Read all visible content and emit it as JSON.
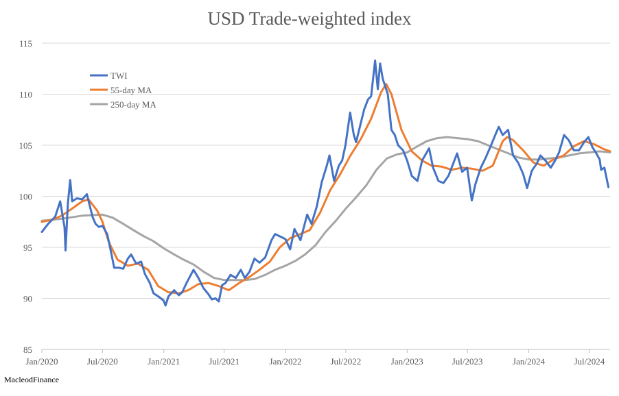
{
  "title": "USD Trade-weighted index",
  "credit": "MacleodFinance",
  "chart_data": {
    "type": "line",
    "title": "USD Trade-weighted index",
    "xlabel": "",
    "ylabel": "",
    "ylim": [
      85,
      115
    ],
    "yticks": [
      85,
      90,
      95,
      100,
      105,
      110,
      115
    ],
    "xlim": [
      "2020-01-01",
      "2024-09-01"
    ],
    "xticks": [
      {
        "date": "2020-01-01",
        "label": "Jan/2020"
      },
      {
        "date": "2020-07-01",
        "label": "Jul/2020"
      },
      {
        "date": "2021-01-01",
        "label": "Jan/2021"
      },
      {
        "date": "2021-07-01",
        "label": "Jul/2021"
      },
      {
        "date": "2022-01-01",
        "label": "Jan/2022"
      },
      {
        "date": "2022-07-01",
        "label": "Jul/2022"
      },
      {
        "date": "2023-01-01",
        "label": "Jan/2023"
      },
      {
        "date": "2023-07-01",
        "label": "Jul/2023"
      },
      {
        "date": "2024-01-01",
        "label": "Jan/2024"
      },
      {
        "date": "2024-07-01",
        "label": "Jul/2024"
      }
    ],
    "grid": "horizontal",
    "legend_position": "top-left",
    "series": [
      {
        "name": "TWI",
        "color": "#4472C4",
        "points": [
          [
            "2020-01-01",
            96.5
          ],
          [
            "2020-01-20",
            97.3
          ],
          [
            "2020-02-10",
            98.0
          ],
          [
            "2020-02-25",
            99.5
          ],
          [
            "2020-03-09",
            97.0
          ],
          [
            "2020-03-12",
            94.7
          ],
          [
            "2020-03-19",
            99.3
          ],
          [
            "2020-03-26",
            101.6
          ],
          [
            "2020-04-01",
            99.5
          ],
          [
            "2020-04-15",
            99.8
          ],
          [
            "2020-05-01",
            99.7
          ],
          [
            "2020-05-15",
            100.2
          ],
          [
            "2020-06-01",
            98.0
          ],
          [
            "2020-06-10",
            97.3
          ],
          [
            "2020-06-20",
            97.0
          ],
          [
            "2020-07-01",
            97.1
          ],
          [
            "2020-07-15",
            96.3
          ],
          [
            "2020-07-25",
            94.8
          ],
          [
            "2020-08-05",
            93.0
          ],
          [
            "2020-08-20",
            93.0
          ],
          [
            "2020-09-01",
            92.9
          ],
          [
            "2020-09-15",
            93.9
          ],
          [
            "2020-09-25",
            94.3
          ],
          [
            "2020-10-10",
            93.4
          ],
          [
            "2020-10-25",
            93.6
          ],
          [
            "2020-11-05",
            92.4
          ],
          [
            "2020-11-20",
            91.5
          ],
          [
            "2020-12-01",
            90.5
          ],
          [
            "2020-12-15",
            90.2
          ],
          [
            "2020-12-31",
            89.8
          ],
          [
            "2021-01-06",
            89.3
          ],
          [
            "2021-01-15",
            90.2
          ],
          [
            "2021-02-01",
            90.8
          ],
          [
            "2021-02-15",
            90.3
          ],
          [
            "2021-02-25",
            90.6
          ],
          [
            "2021-03-10",
            91.5
          ],
          [
            "2021-03-31",
            92.8
          ],
          [
            "2021-04-15",
            92.0
          ],
          [
            "2021-04-30",
            91.0
          ],
          [
            "2021-05-15",
            90.4
          ],
          [
            "2021-05-25",
            89.9
          ],
          [
            "2021-06-05",
            90.0
          ],
          [
            "2021-06-15",
            89.7
          ],
          [
            "2021-06-25",
            91.3
          ],
          [
            "2021-07-05",
            91.5
          ],
          [
            "2021-07-20",
            92.3
          ],
          [
            "2021-08-05",
            92.0
          ],
          [
            "2021-08-20",
            92.8
          ],
          [
            "2021-09-01",
            92.0
          ],
          [
            "2021-09-15",
            92.6
          ],
          [
            "2021-09-30",
            93.9
          ],
          [
            "2021-10-15",
            93.5
          ],
          [
            "2021-11-01",
            94.0
          ],
          [
            "2021-11-20",
            95.7
          ],
          [
            "2021-12-01",
            96.3
          ],
          [
            "2021-12-20",
            96.0
          ],
          [
            "2022-01-01",
            95.8
          ],
          [
            "2022-01-15",
            94.8
          ],
          [
            "2022-01-28",
            96.8
          ],
          [
            "2022-02-15",
            95.7
          ],
          [
            "2022-03-07",
            98.2
          ],
          [
            "2022-03-20",
            97.3
          ],
          [
            "2022-04-05",
            99.0
          ],
          [
            "2022-04-20",
            101.4
          ],
          [
            "2022-05-05",
            103.0
          ],
          [
            "2022-05-13",
            104.0
          ],
          [
            "2022-05-27",
            101.5
          ],
          [
            "2022-06-10",
            103.0
          ],
          [
            "2022-06-20",
            103.5
          ],
          [
            "2022-06-30",
            105.0
          ],
          [
            "2022-07-14",
            108.2
          ],
          [
            "2022-07-25",
            106.0
          ],
          [
            "2022-08-01",
            105.3
          ],
          [
            "2022-08-10",
            106.5
          ],
          [
            "2022-08-25",
            108.5
          ],
          [
            "2022-09-06",
            109.5
          ],
          [
            "2022-09-15",
            109.8
          ],
          [
            "2022-09-27",
            113.3
          ],
          [
            "2022-10-05",
            110.5
          ],
          [
            "2022-10-12",
            113.0
          ],
          [
            "2022-10-20",
            111.5
          ],
          [
            "2022-11-04",
            110.0
          ],
          [
            "2022-11-15",
            106.5
          ],
          [
            "2022-11-25",
            106.0
          ],
          [
            "2022-12-05",
            105.0
          ],
          [
            "2022-12-20",
            104.5
          ],
          [
            "2023-01-01",
            103.5
          ],
          [
            "2023-01-15",
            102.0
          ],
          [
            "2023-02-01",
            101.5
          ],
          [
            "2023-02-15",
            103.5
          ],
          [
            "2023-03-08",
            104.7
          ],
          [
            "2023-03-20",
            102.8
          ],
          [
            "2023-04-05",
            101.5
          ],
          [
            "2023-04-20",
            101.3
          ],
          [
            "2023-05-05",
            102.0
          ],
          [
            "2023-05-31",
            104.2
          ],
          [
            "2023-06-15",
            102.4
          ],
          [
            "2023-06-30",
            102.8
          ],
          [
            "2023-07-14",
            99.6
          ],
          [
            "2023-07-25",
            101.2
          ],
          [
            "2023-08-10",
            102.8
          ],
          [
            "2023-08-25",
            103.8
          ],
          [
            "2023-09-10",
            105.0
          ],
          [
            "2023-09-25",
            106.2
          ],
          [
            "2023-10-03",
            106.8
          ],
          [
            "2023-10-15",
            106.0
          ],
          [
            "2023-10-31",
            106.5
          ],
          [
            "2023-11-15",
            104.0
          ],
          [
            "2023-11-30",
            103.3
          ],
          [
            "2023-12-15",
            102.2
          ],
          [
            "2023-12-27",
            100.8
          ],
          [
            "2024-01-10",
            102.5
          ],
          [
            "2024-01-25",
            103.2
          ],
          [
            "2024-02-05",
            104.0
          ],
          [
            "2024-02-20",
            103.5
          ],
          [
            "2024-03-07",
            102.8
          ],
          [
            "2024-03-20",
            103.5
          ],
          [
            "2024-04-01",
            104.3
          ],
          [
            "2024-04-16",
            106.0
          ],
          [
            "2024-04-30",
            105.5
          ],
          [
            "2024-05-15",
            104.5
          ],
          [
            "2024-05-31",
            104.5
          ],
          [
            "2024-06-15",
            105.3
          ],
          [
            "2024-06-28",
            105.8
          ],
          [
            "2024-07-10",
            104.8
          ],
          [
            "2024-07-20",
            104.3
          ],
          [
            "2024-08-01",
            103.6
          ],
          [
            "2024-08-05",
            102.6
          ],
          [
            "2024-08-15",
            102.8
          ],
          [
            "2024-08-27",
            100.9
          ]
        ]
      },
      {
        "name": "55-day MA",
        "color": "#ED7D31",
        "points": [
          [
            "2020-01-01",
            97.5
          ],
          [
            "2020-02-01",
            97.7
          ],
          [
            "2020-03-01",
            98.1
          ],
          [
            "2020-04-01",
            98.8
          ],
          [
            "2020-05-01",
            99.5
          ],
          [
            "2020-05-20",
            99.7
          ],
          [
            "2020-06-15",
            98.6
          ],
          [
            "2020-07-01",
            97.5
          ],
          [
            "2020-07-20",
            95.5
          ],
          [
            "2020-08-15",
            93.8
          ],
          [
            "2020-09-15",
            93.2
          ],
          [
            "2020-10-15",
            93.4
          ],
          [
            "2020-11-15",
            92.8
          ],
          [
            "2020-12-15",
            91.2
          ],
          [
            "2021-01-15",
            90.6
          ],
          [
            "2021-02-15",
            90.5
          ],
          [
            "2021-03-15",
            90.8
          ],
          [
            "2021-04-15",
            91.4
          ],
          [
            "2021-05-15",
            91.5
          ],
          [
            "2021-06-15",
            91.2
          ],
          [
            "2021-07-15",
            90.8
          ],
          [
            "2021-08-15",
            91.5
          ],
          [
            "2021-09-15",
            92.1
          ],
          [
            "2021-10-15",
            92.8
          ],
          [
            "2021-11-15",
            93.6
          ],
          [
            "2021-12-15",
            95.0
          ],
          [
            "2022-01-15",
            95.9
          ],
          [
            "2022-02-15",
            96.3
          ],
          [
            "2022-03-15",
            96.7
          ],
          [
            "2022-04-15",
            98.4
          ],
          [
            "2022-05-15",
            100.6
          ],
          [
            "2022-06-15",
            102.2
          ],
          [
            "2022-07-15",
            104.0
          ],
          [
            "2022-08-15",
            105.6
          ],
          [
            "2022-09-15",
            107.6
          ],
          [
            "2022-10-15",
            110.2
          ],
          [
            "2022-10-30",
            111.0
          ],
          [
            "2022-11-15",
            110.0
          ],
          [
            "2022-12-15",
            106.5
          ],
          [
            "2023-01-15",
            104.4
          ],
          [
            "2023-02-15",
            103.5
          ],
          [
            "2023-03-15",
            103.0
          ],
          [
            "2023-04-15",
            102.9
          ],
          [
            "2023-05-15",
            102.6
          ],
          [
            "2023-06-15",
            102.8
          ],
          [
            "2023-07-15",
            102.7
          ],
          [
            "2023-08-15",
            102.5
          ],
          [
            "2023-09-15",
            103.0
          ],
          [
            "2023-10-15",
            105.4
          ],
          [
            "2023-10-28",
            105.8
          ],
          [
            "2023-11-15",
            105.5
          ],
          [
            "2023-12-15",
            104.5
          ],
          [
            "2024-01-15",
            103.3
          ],
          [
            "2024-02-15",
            103.0
          ],
          [
            "2024-03-15",
            103.6
          ],
          [
            "2024-04-15",
            104.0
          ],
          [
            "2024-05-15",
            104.9
          ],
          [
            "2024-06-15",
            105.4
          ],
          [
            "2024-07-15",
            105.1
          ],
          [
            "2024-08-15",
            104.6
          ],
          [
            "2024-09-01",
            104.4
          ]
        ]
      },
      {
        "name": "250-day MA",
        "color": "#A5A5A5",
        "points": [
          [
            "2020-01-01",
            97.6
          ],
          [
            "2020-03-01",
            97.8
          ],
          [
            "2020-05-01",
            98.1
          ],
          [
            "2020-07-01",
            98.2
          ],
          [
            "2020-08-01",
            97.9
          ],
          [
            "2020-09-01",
            97.3
          ],
          [
            "2020-10-01",
            96.7
          ],
          [
            "2020-11-01",
            96.1
          ],
          [
            "2020-12-01",
            95.6
          ],
          [
            "2021-01-01",
            94.9
          ],
          [
            "2021-02-01",
            94.3
          ],
          [
            "2021-03-01",
            93.8
          ],
          [
            "2021-04-01",
            93.3
          ],
          [
            "2021-05-01",
            92.6
          ],
          [
            "2021-06-01",
            92.0
          ],
          [
            "2021-07-01",
            91.8
          ],
          [
            "2021-08-01",
            91.8
          ],
          [
            "2021-09-01",
            91.8
          ],
          [
            "2021-10-01",
            91.9
          ],
          [
            "2021-11-01",
            92.3
          ],
          [
            "2021-12-01",
            92.8
          ],
          [
            "2022-01-01",
            93.2
          ],
          [
            "2022-02-01",
            93.7
          ],
          [
            "2022-03-01",
            94.3
          ],
          [
            "2022-04-01",
            95.2
          ],
          [
            "2022-05-01",
            96.5
          ],
          [
            "2022-06-01",
            97.6
          ],
          [
            "2022-07-01",
            98.8
          ],
          [
            "2022-08-01",
            99.9
          ],
          [
            "2022-09-01",
            101.1
          ],
          [
            "2022-10-01",
            102.6
          ],
          [
            "2022-11-01",
            103.7
          ],
          [
            "2022-12-01",
            104.1
          ],
          [
            "2023-01-01",
            104.3
          ],
          [
            "2023-02-01",
            104.9
          ],
          [
            "2023-03-01",
            105.4
          ],
          [
            "2023-04-01",
            105.7
          ],
          [
            "2023-05-01",
            105.8
          ],
          [
            "2023-06-01",
            105.7
          ],
          [
            "2023-07-01",
            105.6
          ],
          [
            "2023-08-01",
            105.4
          ],
          [
            "2023-09-01",
            105.0
          ],
          [
            "2023-10-01",
            104.6
          ],
          [
            "2023-11-01",
            104.2
          ],
          [
            "2023-12-01",
            103.8
          ],
          [
            "2024-01-01",
            103.6
          ],
          [
            "2024-02-01",
            103.6
          ],
          [
            "2024-03-01",
            103.7
          ],
          [
            "2024-04-01",
            103.8
          ],
          [
            "2024-05-01",
            104.0
          ],
          [
            "2024-06-01",
            104.2
          ],
          [
            "2024-07-01",
            104.3
          ],
          [
            "2024-08-01",
            104.4
          ],
          [
            "2024-09-01",
            104.3
          ]
        ]
      }
    ]
  }
}
